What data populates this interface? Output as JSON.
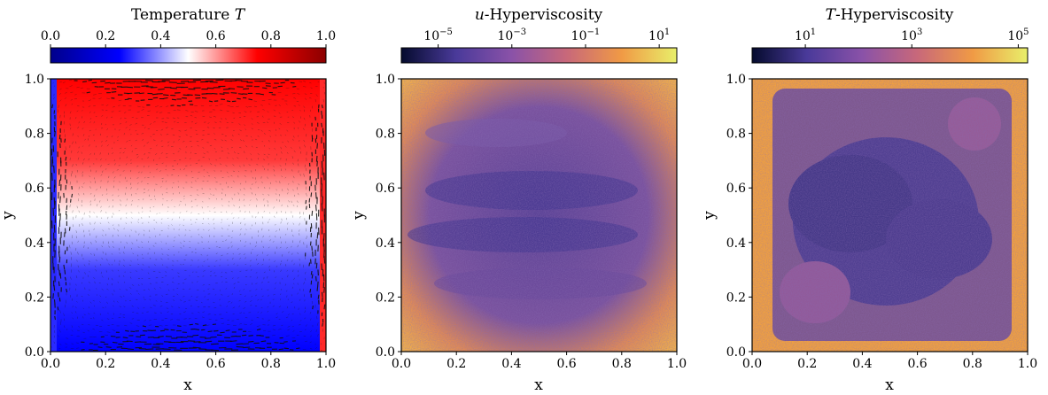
{
  "colors": {
    "temperature_map": [
      "#00008b",
      "#0000ff",
      "#ffffff",
      "#ff0000",
      "#8b0000"
    ],
    "hyperviscosity_map": [
      "#050b2e",
      "#4a3a9a",
      "#8a52a8",
      "#c8687a",
      "#f09a45",
      "#e8ef6a"
    ],
    "arrow_color": "#111111"
  },
  "chart_data": [
    {
      "type": "heatmap",
      "title": "Temperature T",
      "colorbar": {
        "label": "Temperature T",
        "ticks": [
          "0.0",
          "0.2",
          "0.4",
          "0.6",
          "0.8",
          "1.0"
        ],
        "range": [
          0.0,
          1.0
        ],
        "scale": "linear"
      },
      "xlabel": "x",
      "ylabel": "y",
      "xlim": [
        0.0,
        1.0
      ],
      "ylim": [
        0.0,
        1.0
      ],
      "xticks": [
        "0.0",
        "0.2",
        "0.4",
        "0.6",
        "0.8",
        "1.0"
      ],
      "yticks": [
        "0.0",
        "0.2",
        "0.4",
        "0.6",
        "0.8",
        "1.0"
      ],
      "overlay": "velocity quiver arrows",
      "grid": false
    },
    {
      "type": "heatmap",
      "title": "u-Hyperviscosity",
      "colorbar": {
        "label": "u-Hyperviscosity",
        "ticks": [
          "10^-5",
          "10^-3",
          "10^-1",
          "10^1"
        ],
        "range": [
          1e-06,
          30
        ],
        "scale": "log"
      },
      "xlabel": "x",
      "ylabel": "y",
      "xlim": [
        0.0,
        1.0
      ],
      "ylim": [
        0.0,
        1.0
      ],
      "xticks": [
        "0.0",
        "0.2",
        "0.4",
        "0.6",
        "0.8",
        "1.0"
      ],
      "yticks": [
        "0.0",
        "0.2",
        "0.4",
        "0.6",
        "0.8",
        "1.0"
      ],
      "grid": false
    },
    {
      "type": "heatmap",
      "title": "T-Hyperviscosity",
      "colorbar": {
        "label": "T-Hyperviscosity",
        "ticks": [
          "10^1",
          "10^3",
          "10^5"
        ],
        "range": [
          1,
          150000
        ],
        "scale": "log"
      },
      "xlabel": "x",
      "ylabel": "y",
      "xlim": [
        0.0,
        1.0
      ],
      "ylim": [
        0.0,
        1.0
      ],
      "xticks": [
        "0.0",
        "0.2",
        "0.4",
        "0.6",
        "0.8",
        "1.0"
      ],
      "yticks": [
        "0.0",
        "0.2",
        "0.4",
        "0.6",
        "0.8",
        "1.0"
      ],
      "grid": false
    }
  ]
}
